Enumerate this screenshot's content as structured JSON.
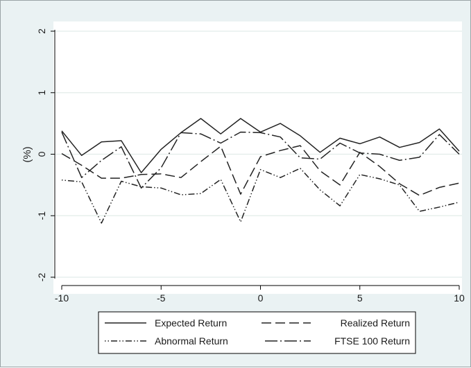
{
  "chart_data": {
    "type": "line",
    "title": "",
    "xlabel": "",
    "ylabel": "(%)",
    "xlim": [
      -10,
      10
    ],
    "ylim": [
      -2.2,
      2.15
    ],
    "x_ticks": [
      -10,
      -5,
      0,
      5,
      10
    ],
    "y_ticks": [
      -2,
      -1,
      0,
      1,
      2
    ],
    "grid": "horizontal",
    "legend_position": "bottom",
    "background": "#eaf2f3",
    "plot_background": "#ffffff",
    "gridline_color": "#e2ece9",
    "x": [
      -10,
      -9,
      -8,
      -7,
      -6,
      -5,
      -4,
      -3,
      -2,
      -1,
      0,
      1,
      2,
      3,
      4,
      5,
      6,
      7,
      8,
      9,
      10
    ],
    "series": [
      {
        "name": "Expected Return",
        "style": "solid",
        "color": "#222222",
        "values": [
          0.38,
          -0.02,
          0.2,
          0.22,
          -0.3,
          0.08,
          0.35,
          0.58,
          0.33,
          0.58,
          0.36,
          0.5,
          0.3,
          0.03,
          0.26,
          0.17,
          0.28,
          0.11,
          0.19,
          0.41,
          0.05
        ]
      },
      {
        "name": "Realized Return",
        "style": "dashed",
        "color": "#222222",
        "values": [
          0.01,
          -0.18,
          -0.39,
          -0.39,
          -0.33,
          -0.32,
          -0.38,
          -0.12,
          0.13,
          -0.65,
          -0.04,
          0.06,
          0.14,
          -0.27,
          -0.5,
          0.03,
          -0.2,
          -0.48,
          -0.67,
          -0.54,
          -0.47
        ]
      },
      {
        "name": "Abnormal Return",
        "style": "dot-dot-dash",
        "color": "#222222",
        "values": [
          -0.42,
          -0.45,
          -1.12,
          -0.44,
          -0.53,
          -0.55,
          -0.66,
          -0.64,
          -0.41,
          -1.1,
          -0.25,
          -0.38,
          -0.23,
          -0.58,
          -0.84,
          -0.33,
          -0.4,
          -0.5,
          -0.93,
          -0.86,
          -0.78
        ]
      },
      {
        "name": "FTSE 100 Return",
        "style": "long-dash-dot",
        "color": "#222222",
        "values": [
          0.36,
          -0.38,
          -0.1,
          0.12,
          -0.55,
          -0.22,
          0.35,
          0.33,
          0.18,
          0.36,
          0.35,
          0.28,
          -0.06,
          -0.08,
          0.18,
          0.02,
          0.0,
          -0.1,
          -0.05,
          0.32,
          0.0
        ]
      }
    ]
  }
}
